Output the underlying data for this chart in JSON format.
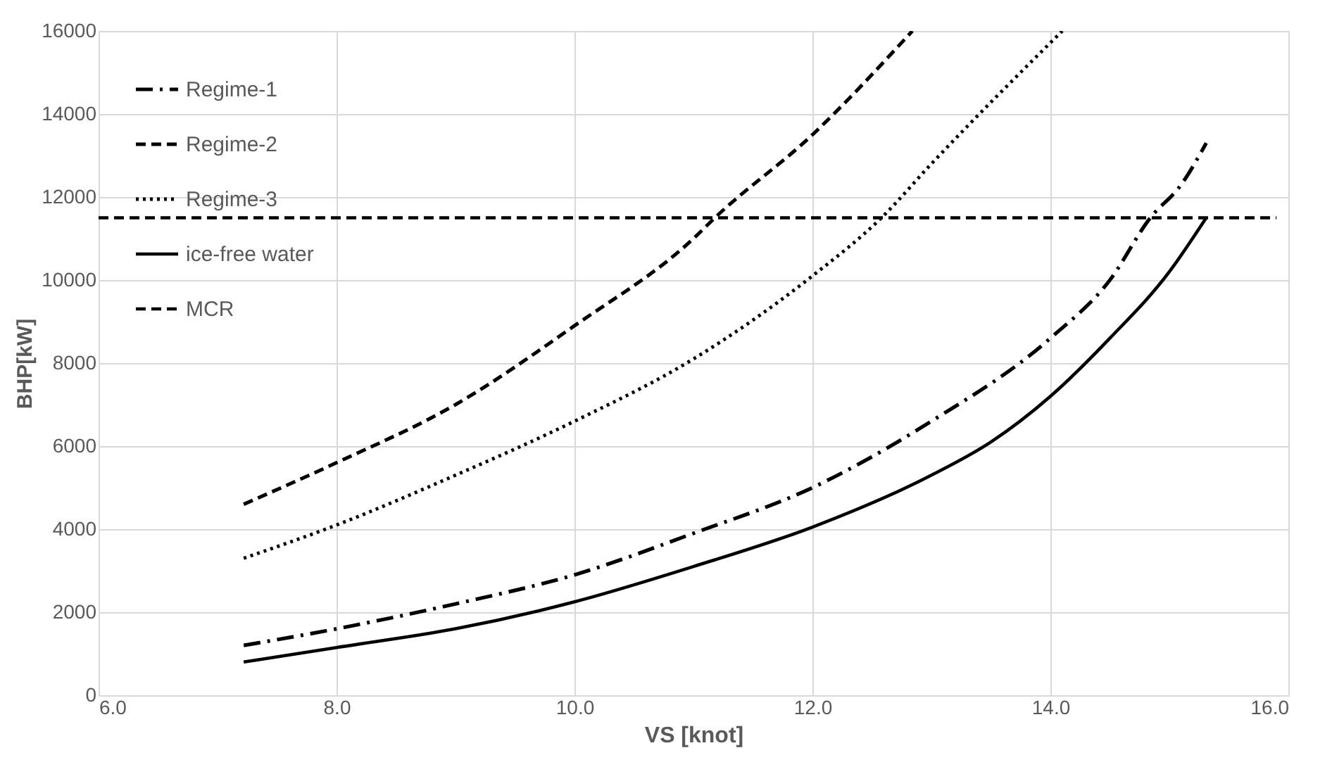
{
  "chart_data": {
    "type": "line",
    "xlabel": "VS [knot]",
    "ylabel": "BHP[kW]",
    "xlim": [
      6,
      16
    ],
    "xticks": [
      {
        "value": 6,
        "label": "6.0"
      },
      {
        "value": 8,
        "label": "8.0"
      },
      {
        "value": 10,
        "label": "10.0"
      },
      {
        "value": 12,
        "label": "12.0"
      },
      {
        "value": 14,
        "label": "14.0"
      },
      {
        "value": 16,
        "label": "16.0"
      }
    ],
    "ylim": [
      0,
      16000
    ],
    "yticks": [
      0,
      2000,
      4000,
      6000,
      8000,
      10000,
      12000,
      14000,
      16000
    ],
    "grid": true,
    "legend": "top left",
    "series": [
      {
        "name": "Regime-1",
        "color": "#000000",
        "line_style": "dashdot",
        "x": [
          7.22,
          8,
          9,
          10,
          11,
          12,
          13,
          14,
          14.5,
          14.84,
          15.1,
          15.31
        ],
        "values": [
          1200,
          1600,
          2200,
          2900,
          3900,
          5000,
          6600,
          8600,
          10000,
          11500,
          12300,
          13300
        ]
      },
      {
        "name": "Regime-2",
        "color": "#000000",
        "line_style": "dashed",
        "x": [
          7.22,
          8,
          9,
          10,
          11,
          11.18,
          12,
          12.84
        ],
        "values": [
          4600,
          5600,
          7000,
          8900,
          11000,
          11500,
          13500,
          16000
        ]
      },
      {
        "name": "Regime-3",
        "color": "#000000",
        "line_style": "dotted",
        "x": [
          7.22,
          8,
          9,
          10,
          11,
          12,
          12.58,
          13,
          14.1
        ],
        "values": [
          3300,
          4100,
          5300,
          6600,
          8100,
          10100,
          11500,
          12800,
          16000
        ]
      },
      {
        "name": "ice-free water",
        "color": "#000000",
        "line_style": "solid",
        "x": [
          7.22,
          8,
          9,
          10,
          11,
          12,
          13,
          13.5,
          14,
          14.5,
          15,
          15.31
        ],
        "values": [
          800,
          1150,
          1600,
          2250,
          3100,
          4050,
          5300,
          6100,
          7200,
          8600,
          10200,
          11500
        ]
      },
      {
        "name": "MCR",
        "color": "#000000",
        "line_style": "dashed",
        "x": [
          6,
          15.9
        ],
        "values": [
          11500,
          11500
        ]
      }
    ]
  }
}
